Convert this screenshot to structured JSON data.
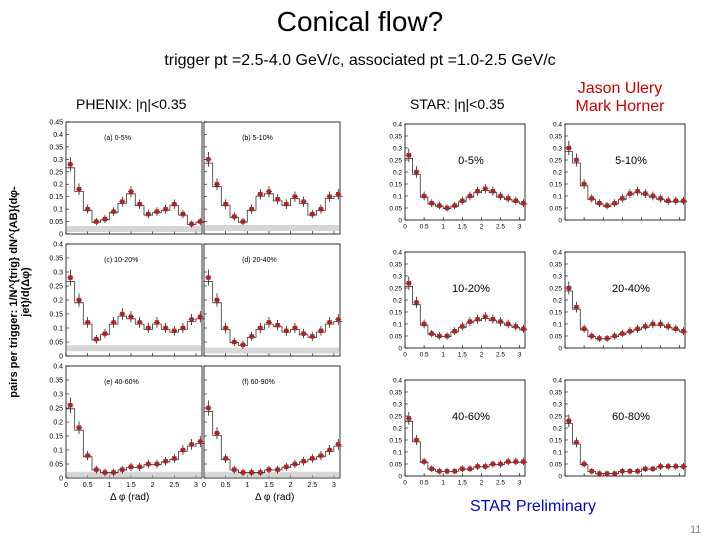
{
  "header": {
    "title": "Conical flow?",
    "subtitle": "trigger pt =2.5-4.0 GeV/c, associated pt =1.0-2.5 GeV/c",
    "phenix_label": "PHENIX: |η|<0.35",
    "star_label": "STAR: |η|<0.35",
    "author1": "Jason Ulery",
    "author2": "Mark Horner",
    "star_preliminary": "STAR Preliminary",
    "page_number": "11"
  },
  "colors": {
    "marker": "#b22222",
    "accent": "#cc0000",
    "prelim": "#0000cc"
  },
  "chart_data": [
    {
      "type": "scatter",
      "name": "PHENIX",
      "ylabel": "pairs per trigger: 1/N^{trig} dN^{AB}(dφ-jet)/d(Δφ)",
      "xlabel": "Δ φ (rad)",
      "xlim": [
        0,
        3.14
      ],
      "xticks": [
        "0",
        "0.5",
        "1",
        "1.5",
        "2",
        "2.5",
        "3"
      ],
      "panels": [
        {
          "label": "(a) 0-5%",
          "ylim": [
            0,
            0.45
          ],
          "yticks": [
            "0",
            "0.05",
            "0.1",
            "0.15",
            "0.2",
            "0.25",
            "0.3",
            "0.35",
            "0.4",
            "0.45"
          ],
          "x": [
            0.1,
            0.3,
            0.5,
            0.7,
            0.9,
            1.1,
            1.3,
            1.5,
            1.7,
            1.9,
            2.1,
            2.3,
            2.5,
            2.7,
            2.9,
            3.1
          ],
          "y": [
            0.28,
            0.18,
            0.1,
            0.05,
            0.06,
            0.09,
            0.13,
            0.17,
            0.12,
            0.08,
            0.09,
            0.1,
            0.12,
            0.08,
            0.04,
            0.05
          ]
        },
        {
          "label": "(b) 5-10%",
          "ylim": [
            0,
            0.45
          ],
          "yticks": [
            "0",
            "0.05",
            "0.1",
            "0.15",
            "0.2",
            "0.25",
            "0.3",
            "0.35",
            "0.4",
            "0.45"
          ],
          "x": [
            0.1,
            0.3,
            0.5,
            0.7,
            0.9,
            1.1,
            1.3,
            1.5,
            1.7,
            1.9,
            2.1,
            2.3,
            2.5,
            2.7,
            2.9,
            3.1
          ],
          "y": [
            0.3,
            0.2,
            0.12,
            0.07,
            0.05,
            0.1,
            0.16,
            0.17,
            0.14,
            0.12,
            0.15,
            0.13,
            0.08,
            0.1,
            0.15,
            0.16
          ]
        },
        {
          "label": "(c) 10-20%",
          "ylim": [
            0,
            0.4
          ],
          "yticks": [
            "0",
            "0.05",
            "0.1",
            "0.15",
            "0.2",
            "0.25",
            "0.3",
            "0.35",
            "0.4"
          ],
          "x": [
            0.1,
            0.3,
            0.5,
            0.7,
            0.9,
            1.1,
            1.3,
            1.5,
            1.7,
            1.9,
            2.1,
            2.3,
            2.5,
            2.7,
            2.9,
            3.1
          ],
          "y": [
            0.28,
            0.2,
            0.12,
            0.06,
            0.08,
            0.12,
            0.15,
            0.14,
            0.12,
            0.1,
            0.12,
            0.1,
            0.09,
            0.1,
            0.13,
            0.14
          ]
        },
        {
          "label": "(d) 20-40%",
          "ylim": [
            0,
            0.4
          ],
          "yticks": [
            "0",
            "0.05",
            "0.1",
            "0.15",
            "0.2",
            "0.25",
            "0.3",
            "0.35",
            "0.4"
          ],
          "x": [
            0.1,
            0.3,
            0.5,
            0.7,
            0.9,
            1.1,
            1.3,
            1.5,
            1.7,
            1.9,
            2.1,
            2.3,
            2.5,
            2.7,
            2.9,
            3.1
          ],
          "y": [
            0.28,
            0.2,
            0.1,
            0.05,
            0.04,
            0.07,
            0.1,
            0.12,
            0.11,
            0.09,
            0.1,
            0.08,
            0.07,
            0.09,
            0.12,
            0.13
          ]
        },
        {
          "label": "(e) 40-60%",
          "ylim": [
            0,
            0.4
          ],
          "yticks": [
            "0",
            "0.05",
            "0.1",
            "0.15",
            "0.2",
            "0.25",
            "0.3",
            "0.35",
            "0.4"
          ],
          "x": [
            0.1,
            0.3,
            0.5,
            0.7,
            0.9,
            1.1,
            1.3,
            1.5,
            1.7,
            1.9,
            2.1,
            2.3,
            2.5,
            2.7,
            2.9,
            3.1
          ],
          "y": [
            0.26,
            0.18,
            0.08,
            0.03,
            0.02,
            0.02,
            0.03,
            0.04,
            0.04,
            0.05,
            0.05,
            0.06,
            0.07,
            0.1,
            0.12,
            0.13
          ]
        },
        {
          "label": "(f) 60-90%",
          "ylim": [
            0,
            0.4
          ],
          "yticks": [
            "0",
            "0.05",
            "0.1",
            "0.15",
            "0.2",
            "0.25",
            "0.3",
            "0.35",
            "0.4"
          ],
          "x": [
            0.1,
            0.3,
            0.5,
            0.7,
            0.9,
            1.1,
            1.3,
            1.5,
            1.7,
            1.9,
            2.1,
            2.3,
            2.5,
            2.7,
            2.9,
            3.1
          ],
          "y": [
            0.25,
            0.16,
            0.07,
            0.03,
            0.02,
            0.02,
            0.02,
            0.03,
            0.03,
            0.04,
            0.05,
            0.06,
            0.07,
            0.08,
            0.1,
            0.12
          ]
        }
      ]
    },
    {
      "type": "scatter",
      "name": "STAR",
      "xlim": [
        0,
        3.14
      ],
      "xticks": [
        "0",
        "0.5",
        "1",
        "1.5",
        "2",
        "2.5",
        "3"
      ],
      "panels": [
        {
          "label": "0-5%",
          "ylim": [
            0,
            0.4
          ],
          "yticks": [
            "0",
            "0.05",
            "0.1",
            "0.15",
            "0.2",
            "0.25",
            "0.3",
            "0.35",
            "0.4"
          ],
          "x": [
            0.1,
            0.3,
            0.5,
            0.7,
            0.9,
            1.1,
            1.3,
            1.5,
            1.7,
            1.9,
            2.1,
            2.3,
            2.5,
            2.7,
            2.9,
            3.1
          ],
          "y": [
            0.27,
            0.2,
            0.1,
            0.07,
            0.06,
            0.05,
            0.06,
            0.08,
            0.1,
            0.12,
            0.13,
            0.12,
            0.1,
            0.09,
            0.08,
            0.07
          ]
        },
        {
          "label": "5-10%",
          "ylim": [
            0,
            0.4
          ],
          "yticks": [
            "0",
            "0.05",
            "0.1",
            "0.15",
            "0.2",
            "0.25",
            "0.3",
            "0.35",
            "0.4"
          ],
          "x": [
            0.1,
            0.3,
            0.5,
            0.7,
            0.9,
            1.1,
            1.3,
            1.5,
            1.7,
            1.9,
            2.1,
            2.3,
            2.5,
            2.7,
            2.9,
            3.1
          ],
          "y": [
            0.3,
            0.25,
            0.15,
            0.09,
            0.07,
            0.06,
            0.07,
            0.09,
            0.11,
            0.12,
            0.11,
            0.1,
            0.09,
            0.08,
            0.08,
            0.08
          ]
        },
        {
          "label": "10-20%",
          "ylim": [
            0,
            0.4
          ],
          "yticks": [
            "0",
            "0.05",
            "0.1",
            "0.15",
            "0.2",
            "0.25",
            "0.3",
            "0.35",
            "0.4"
          ],
          "x": [
            0.1,
            0.3,
            0.5,
            0.7,
            0.9,
            1.1,
            1.3,
            1.5,
            1.7,
            1.9,
            2.1,
            2.3,
            2.5,
            2.7,
            2.9,
            3.1
          ],
          "y": [
            0.27,
            0.19,
            0.1,
            0.06,
            0.05,
            0.05,
            0.07,
            0.09,
            0.11,
            0.12,
            0.13,
            0.12,
            0.11,
            0.1,
            0.09,
            0.08
          ]
        },
        {
          "label": "20-40%",
          "ylim": [
            0,
            0.4
          ],
          "yticks": [
            "0",
            "0.05",
            "0.1",
            "0.15",
            "0.2",
            "0.25",
            "0.3",
            "0.35",
            "0.4"
          ],
          "x": [
            0.1,
            0.3,
            0.5,
            0.7,
            0.9,
            1.1,
            1.3,
            1.5,
            1.7,
            1.9,
            2.1,
            2.3,
            2.5,
            2.7,
            2.9,
            3.1
          ],
          "y": [
            0.25,
            0.17,
            0.08,
            0.05,
            0.04,
            0.04,
            0.05,
            0.06,
            0.07,
            0.08,
            0.09,
            0.1,
            0.1,
            0.09,
            0.08,
            0.07
          ]
        },
        {
          "label": "40-60%",
          "ylim": [
            0,
            0.4
          ],
          "yticks": [
            "0",
            "0.05",
            "0.1",
            "0.15",
            "0.2",
            "0.25",
            "0.3",
            "0.35",
            "0.4"
          ],
          "x": [
            0.1,
            0.3,
            0.5,
            0.7,
            0.9,
            1.1,
            1.3,
            1.5,
            1.7,
            1.9,
            2.1,
            2.3,
            2.5,
            2.7,
            2.9,
            3.1
          ],
          "y": [
            0.24,
            0.15,
            0.06,
            0.03,
            0.02,
            0.02,
            0.02,
            0.03,
            0.03,
            0.04,
            0.04,
            0.05,
            0.05,
            0.06,
            0.06,
            0.06
          ]
        },
        {
          "label": "60-80%",
          "ylim": [
            0,
            0.4
          ],
          "yticks": [
            "0",
            "0.05",
            "0.1",
            "0.15",
            "0.2",
            "0.25",
            "0.3",
            "0.35",
            "0.4"
          ],
          "x": [
            0.1,
            0.3,
            0.5,
            0.7,
            0.9,
            1.1,
            1.3,
            1.5,
            1.7,
            1.9,
            2.1,
            2.3,
            2.5,
            2.7,
            2.9,
            3.1
          ],
          "y": [
            0.23,
            0.14,
            0.05,
            0.02,
            0.01,
            0.01,
            0.01,
            0.02,
            0.02,
            0.02,
            0.03,
            0.03,
            0.04,
            0.04,
            0.04,
            0.04
          ]
        }
      ]
    }
  ]
}
